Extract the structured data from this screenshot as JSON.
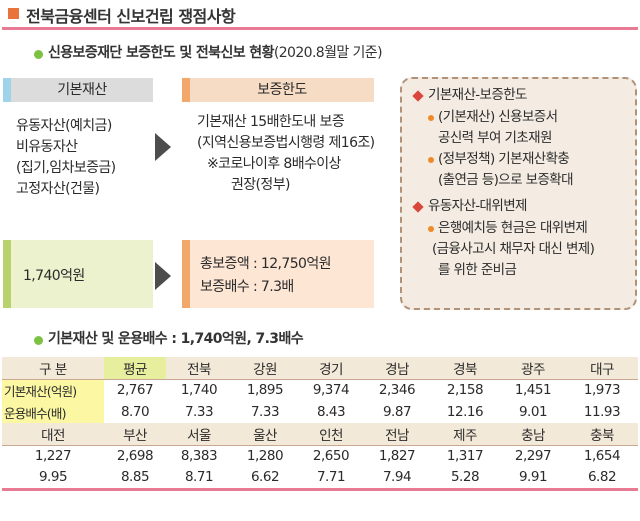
{
  "title": "전북금융센터 신보건립 쟁점사항",
  "section1": {
    "title": "신용보증재단 보증한도 및 전북신보 현황",
    "note": "(2020.8월말 기준)",
    "left_header": "기본재산",
    "left_lines": [
      "유동자산(예치금)",
      "비유동자산",
      "(집기,임차보증금)",
      "고정자산(건물)"
    ],
    "left_value": "1,740억원",
    "right_header": "보증한도",
    "right_lines": [
      "기본재산 15배한도내 보증",
      "(지역신용보증법시행령 제16조)",
      "※코로나이후 8배수이상",
      "권장(정부)"
    ],
    "right_value_line1": "총보증액 : 12,750억원",
    "right_value_line2": "보증배수 : 7.3배",
    "side": {
      "heading1": "기본재산-보증한도",
      "item1_line1": "(기본재산) 신용보증서",
      "item1_line2": "공신력 부여 기초재원",
      "item2_line1": "(정부정책) 기본재산확충",
      "item2_line2": "(출연금 등)으로 보증확대",
      "heading2": "유동자산-대위변제",
      "item3_line1": "은행예치등 현금은 대위변제",
      "item3_line2": "(금융사고시 채무자 대신 변제)",
      "item3_line3": "를 위한 준비금"
    }
  },
  "section2": {
    "title": "기본재산 및 운용배수 : 1,740억원, 7.3배수"
  },
  "table": {
    "header": [
      "구 분",
      "평균",
      "전북",
      "강원",
      "경기",
      "경남",
      "경북",
      "광주",
      "대구"
    ],
    "row1": [
      "기본재산(억원)",
      "2,767",
      "1,740",
      "1,895",
      "9,374",
      "2,346",
      "2,158",
      "1,451",
      "1,973"
    ],
    "row2": [
      "운용배수(배)",
      "8.70",
      "7.33",
      "7.33",
      "8.43",
      "9.87",
      "12.16",
      "9.01",
      "11.93"
    ],
    "header2": [
      "대전",
      "부산",
      "서울",
      "울산",
      "인천",
      "전남",
      "제주",
      "충남",
      "충북"
    ],
    "row3": [
      "1,227",
      "2,698",
      "8,383",
      "1,280",
      "2,650",
      "1,827",
      "1,317",
      "2,297",
      "1,654"
    ],
    "row4": [
      "9.95",
      "8.85",
      "8.71",
      "6.62",
      "7.71",
      "7.94",
      "5.28",
      "9.91",
      "6.82"
    ]
  },
  "colors": {
    "accent_pink": "#e87b93",
    "green_dot": "#7cc142",
    "orange": "#f3a86b",
    "diamond_red": "#d9463b"
  }
}
